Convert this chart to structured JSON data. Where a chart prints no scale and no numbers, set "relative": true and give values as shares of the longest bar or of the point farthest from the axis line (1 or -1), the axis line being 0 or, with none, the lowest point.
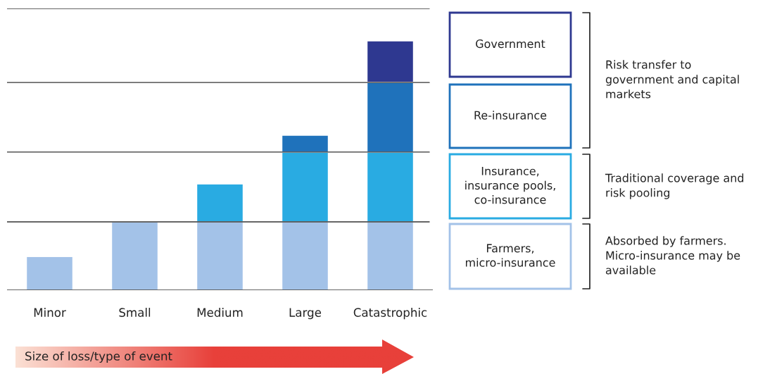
{
  "chart_data": {
    "type": "bar",
    "stacked": true,
    "relative": true,
    "xlabel": "Size of loss/type of event",
    "categories": [
      "Minor",
      "Small",
      "Medium",
      "Large",
      "Catastrophic"
    ],
    "series": [
      {
        "name": "Farmers,\nmicro-insurance",
        "color": "#a3c2e8",
        "values": [
          0.136,
          0.274,
          0.274,
          0.274,
          0.274
        ]
      },
      {
        "name": "Insurance,\ninsurance pools,\nco-insurance",
        "color": "#29abe2",
        "values": [
          null,
          null,
          0.153,
          0.28,
          0.28
        ]
      },
      {
        "name": "Re-insurance",
        "color": "#1f72bb",
        "values": [
          null,
          null,
          null,
          0.068,
          0.28
        ]
      },
      {
        "name": "Government",
        "color": "#2e3890",
        "values": [
          null,
          null,
          null,
          null,
          0.166
        ]
      }
    ],
    "ref_lines": [
      {
        "axis": "y",
        "value": 0.274,
        "color": "#333333"
      },
      {
        "axis": "y",
        "value": 0.554,
        "color": "#333333"
      },
      {
        "axis": "y",
        "value": 0.833,
        "color": "#333333"
      },
      {
        "axis": "y",
        "value": 1.13,
        "color": "#333333"
      }
    ],
    "annotations": [
      "Risk transfer to\ngovernment and capital\nmarkets",
      "Traditional coverage and\nrisk pooling",
      "Absorbed by farmers.\nMicro-insurance may be\navailable"
    ],
    "legend": "right",
    "grid": false
  }
}
